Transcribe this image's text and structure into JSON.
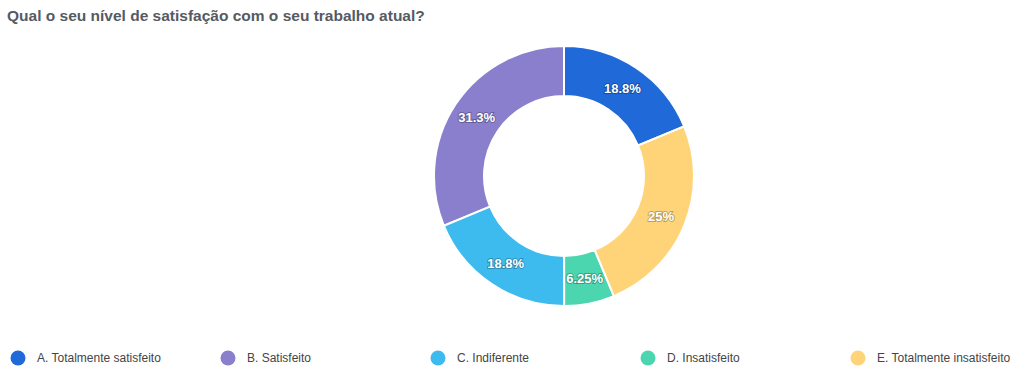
{
  "chart_data": {
    "type": "pie",
    "title": "Qual o seu nível de satisfação com o seu trabalho atual?",
    "categories": [
      "A. Totalmente satisfeito",
      "B. Satisfeito",
      "C. Indiferente",
      "D. Insatisfeito",
      "E. Totalmente insatisfeito"
    ],
    "values": [
      18.8,
      31.3,
      18.8,
      6.25,
      25
    ],
    "value_labels": [
      "18.8%",
      "31.3%",
      "18.8%",
      "6.25%",
      "25%"
    ],
    "colors": [
      "#1f69d9",
      "#8a7fcc",
      "#3dbbef",
      "#4cd6b0",
      "#ffd478"
    ],
    "data_labels": true,
    "legend": "bottom"
  }
}
